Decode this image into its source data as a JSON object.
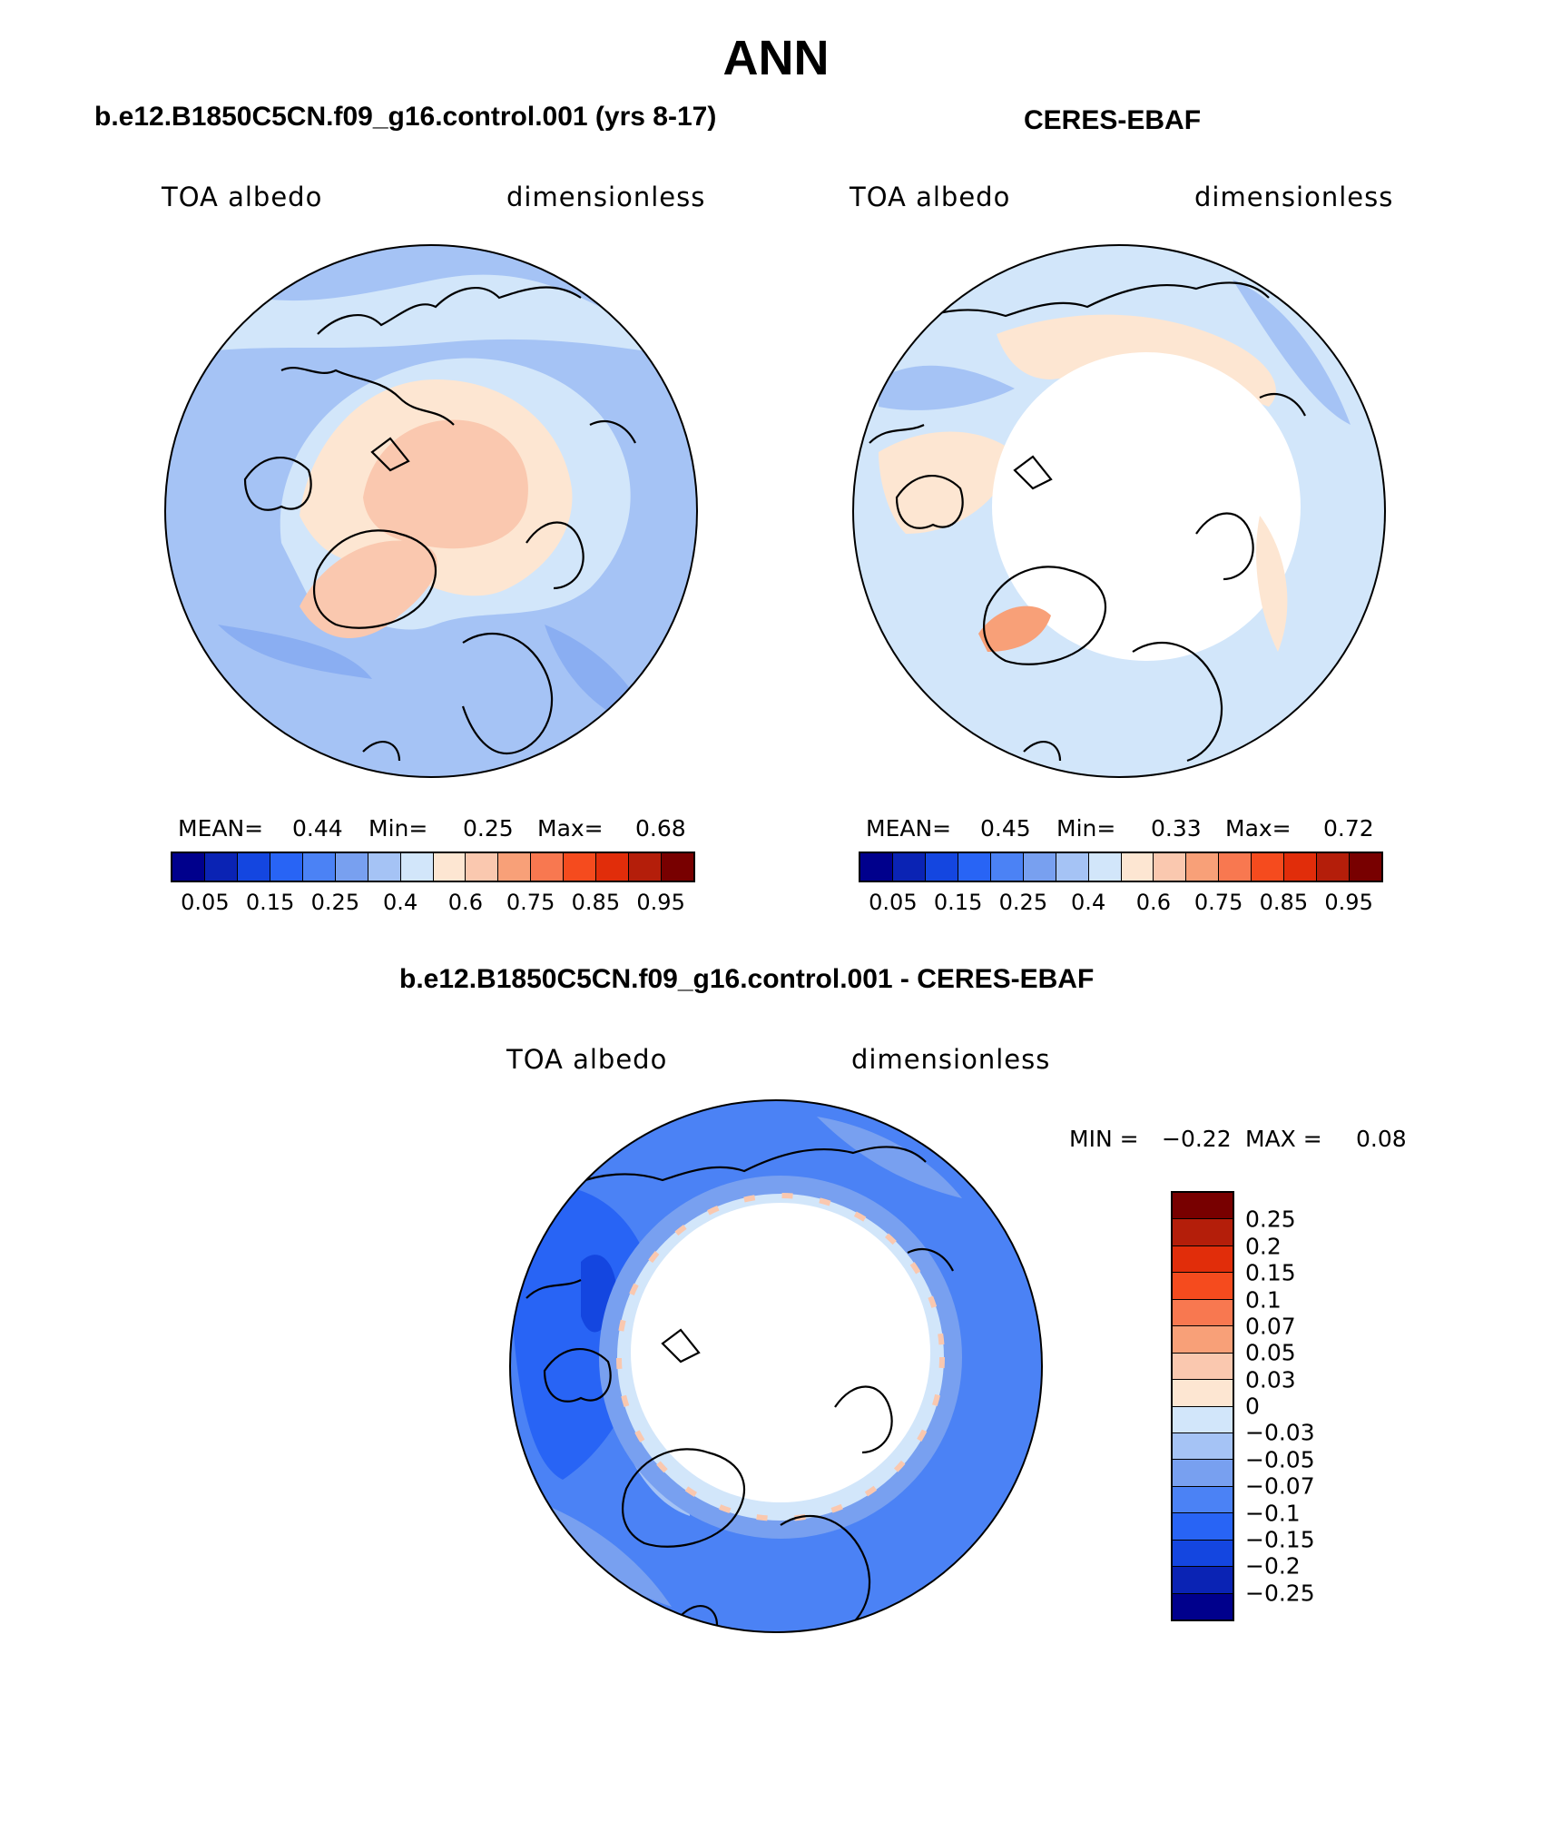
{
  "title": "ANN",
  "panels": [
    {
      "title": "b.e12.B1850C5CN.f09_g16.control.001 (yrs 8-17)",
      "left_label": "TOA albedo",
      "right_label": "dimensionless",
      "stats": {
        "mean_label": "MEAN=",
        "mean": "0.44",
        "min_label": "Min=",
        "min": "0.25",
        "max_label": "Max=",
        "max": "0.68"
      },
      "colorbar_labels": [
        "0.05",
        "0.15",
        "0.25",
        "0.4",
        "0.6",
        "0.75",
        "0.85",
        "0.95"
      ]
    },
    {
      "title": "CERES-EBAF",
      "left_label": "TOA albedo",
      "right_label": "dimensionless",
      "stats": {
        "mean_label": "MEAN=",
        "mean": "0.45",
        "min_label": "Min=",
        "min": "0.33",
        "max_label": "Max=",
        "max": "0.72"
      },
      "colorbar_labels": [
        "0.05",
        "0.15",
        "0.25",
        "0.4",
        "0.6",
        "0.75",
        "0.85",
        "0.95"
      ]
    },
    {
      "title": "b.e12.B1850C5CN.f09_g16.control.001 - CERES-EBAF",
      "left_label": "TOA albedo",
      "right_label": "dimensionless",
      "stats": {
        "min_label": "MIN =",
        "min": "−0.22",
        "max_label": "MAX =",
        "max": "0.08"
      },
      "colorbar_labels": [
        "0.25",
        "0.2",
        "0.15",
        "0.1",
        "0.07",
        "0.05",
        "0.03",
        "0",
        "−0.03",
        "−0.05",
        "−0.07",
        "−0.1",
        "−0.15",
        "−0.2",
        "−0.25"
      ]
    }
  ],
  "colors": {
    "abs_scale": [
      "#00008c",
      "#0a23b4",
      "#1446e0",
      "#2864f5",
      "#4b82f5",
      "#78a0f0",
      "#a5c3f5",
      "#d2e6fa",
      "#fde6d2",
      "#fac8af",
      "#f8a078",
      "#f87850",
      "#f54b1e",
      "#e12d0a",
      "#b41e0a",
      "#780000"
    ],
    "diff_scale": [
      "#780000",
      "#b41e0a",
      "#e12d0a",
      "#f54b1e",
      "#f87850",
      "#f8a078",
      "#fac8af",
      "#fde6d2",
      "#d2e6fa",
      "#a5c3f5",
      "#78a0f0",
      "#4b82f5",
      "#2864f5",
      "#1446e0",
      "#0a23b4",
      "#00008c"
    ],
    "coastline": "#000000"
  }
}
